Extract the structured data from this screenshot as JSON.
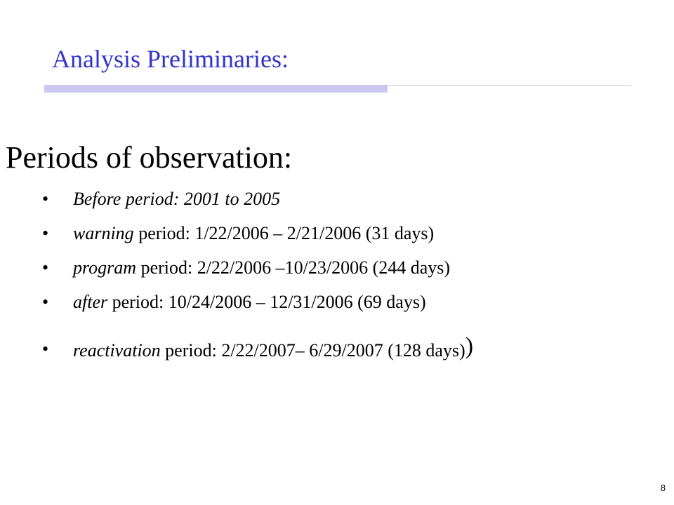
{
  "slide": {
    "title": "Analysis Preliminaries:",
    "heading": "Periods of observation:",
    "bullet_symbol": "•",
    "bullets": [
      {
        "lead": "Before period: 2001 to 2005",
        "rest": ""
      },
      {
        "lead": "warning",
        "rest": " period: 1/22/2006 – 2/21/2006 (31 days)"
      },
      {
        "lead": "program",
        "rest": " period: 2/22/2006 –10/23/2006 (244 days)"
      },
      {
        "lead": "after",
        "rest": " period: 10/24/2006 – 12/31/2006 (69 days)"
      },
      {
        "lead": "reactivation",
        "rest": " period: 2/22/2007– 6/29/2007 (128 days)",
        "trailing": ")"
      }
    ],
    "page_number": "8"
  },
  "colors": {
    "title": "#3333cc",
    "accent_bar": "#c8c8f0",
    "text": "#000000",
    "background": "#ffffff"
  }
}
